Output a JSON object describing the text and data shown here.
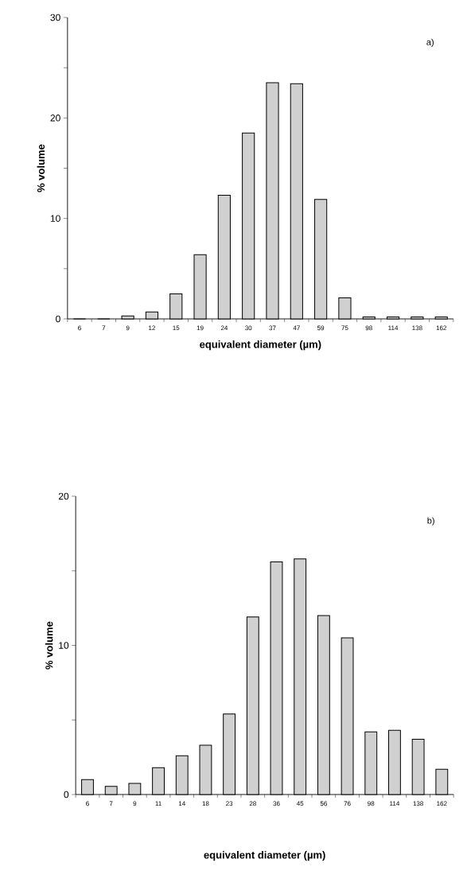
{
  "chart_data": [
    {
      "type": "bar",
      "title": "a)",
      "xlabel": "equivalent diameter (µm)",
      "ylabel": "% volume",
      "categories": [
        "6",
        "7",
        "9",
        "12",
        "15",
        "19",
        "24",
        "30",
        "37",
        "47",
        "59",
        "75",
        "98",
        "114",
        "138",
        "162"
      ],
      "values": [
        0,
        0,
        0.3,
        0.7,
        2.5,
        6.4,
        12.3,
        18.5,
        23.5,
        23.4,
        11.9,
        2.1,
        0.2,
        0.2,
        0.2,
        0.2
      ],
      "color": "#d0d0d0",
      "ylim": [
        0,
        30
      ],
      "yticks": [
        0,
        {
          "value": 5,
          "label": null
        },
        10,
        {
          "value": 15,
          "label": null
        },
        20,
        {
          "value": 25,
          "label": null
        },
        30
      ]
    },
    {
      "type": "bar",
      "title": "b)",
      "xlabel": "equivalent diameter (µm)",
      "ylabel": "% volume",
      "categories": [
        "6",
        "7",
        "9",
        "11",
        "14",
        "18",
        "23",
        "28",
        "36",
        "45",
        "56",
        "76",
        "98",
        "114",
        "138",
        "162"
      ],
      "values": [
        1.0,
        0.55,
        0.75,
        1.8,
        2.6,
        3.3,
        5.4,
        11.9,
        15.6,
        15.8,
        12.0,
        10.5,
        4.2,
        4.3,
        3.7,
        1.7
      ],
      "color": "#d0d0d0",
      "ylim": [
        0,
        20
      ],
      "yticks": [
        0,
        {
          "value": 5,
          "label": null
        },
        10,
        {
          "value": 15,
          "label": null
        },
        20
      ]
    }
  ]
}
